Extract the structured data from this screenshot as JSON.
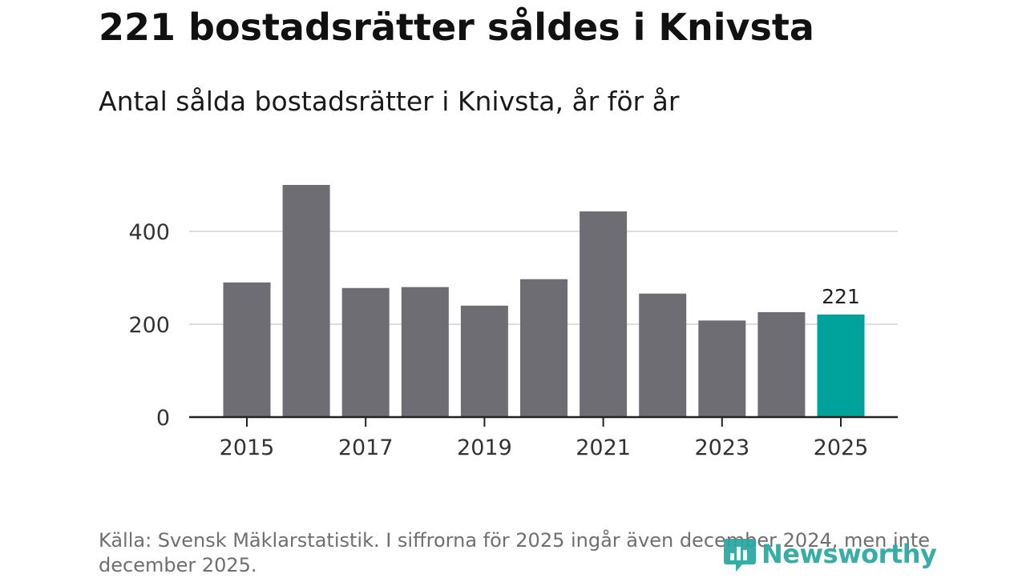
{
  "title": "221 bostadsrätter såldes i Knivsta",
  "subtitle": "Antal sålda bostadsrätter i Knivsta, år för år",
  "source": "Källa: Svensk Mäklarstatistik. I siffrorna för 2025 ingår även december 2024, men inte december 2025.",
  "logo_text": "Newsworthy",
  "colors": {
    "bar": "#6e6d73",
    "highlight": "#00a39b",
    "grid": "#dddddd",
    "axis": "#222222",
    "logo": "#2aa79f"
  },
  "chart_data": {
    "type": "bar",
    "x": [
      2015,
      2016,
      2017,
      2018,
      2019,
      2020,
      2021,
      2022,
      2023,
      2024,
      2025
    ],
    "values": [
      290,
      500,
      278,
      280,
      240,
      297,
      443,
      266,
      208,
      226,
      221
    ],
    "highlight_index": 10,
    "data_labels": [
      {
        "index": 10,
        "text": "221"
      }
    ],
    "x_ticks": [
      "2015",
      "2017",
      "2019",
      "2021",
      "2023",
      "2025"
    ],
    "y_ticks": [
      0,
      200,
      400
    ],
    "ylim": [
      0,
      520
    ],
    "grid": "horizontal"
  }
}
